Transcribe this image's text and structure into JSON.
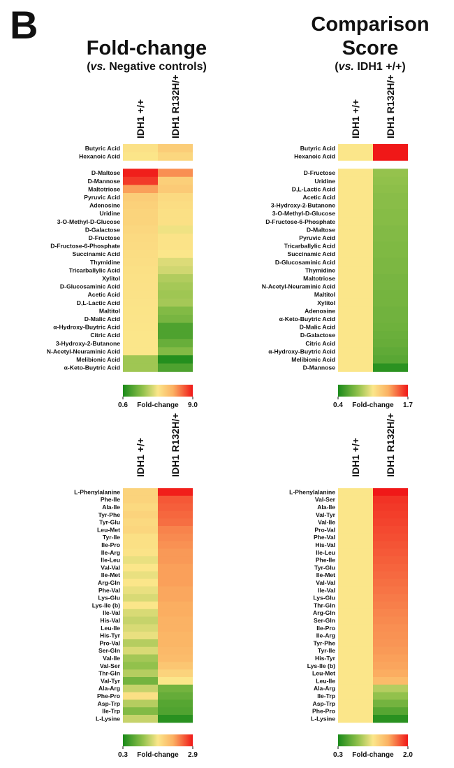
{
  "panel_letter": "B",
  "headers": {
    "left": {
      "title": "Fold-change",
      "subtitle_italic": "vs.",
      "subtitle_rest": " Negative controls)"
    },
    "right": {
      "title_line1": "Comparison",
      "title_line2": "Score",
      "subtitle_italic": "vs.",
      "subtitle_rest": " IDH1 +/+)"
    }
  },
  "colors": {
    "green": "#1a8a1a",
    "mid_green": "#8fc04a",
    "yellow": "#fbe68a",
    "orange": "#fbb062",
    "red": "#f01818"
  },
  "chart_data": [
    {
      "id": "top_left",
      "type": "heatmap",
      "title": "Fold-change (vs. Negative controls)",
      "columns": [
        "IDH1 +/+",
        "IDH1 R132H/+"
      ],
      "groups": [
        {
          "rows": [
            {
              "label": "Butyric Acid",
              "values": [
                1.3,
                2.6
              ]
            },
            {
              "label": "Hexanoic Acid",
              "values": [
                1.05,
                2.0
              ]
            }
          ]
        },
        {
          "rows": [
            {
              "label": "D-Maltose",
              "values": [
                8.8,
                5.5
              ]
            },
            {
              "label": "D-Mannose",
              "values": [
                8.0,
                2.5
              ]
            },
            {
              "label": "Maltotriose",
              "values": [
                5.0,
                2.8
              ]
            },
            {
              "label": "Pyruvic Acid",
              "values": [
                2.6,
                1.8
              ]
            },
            {
              "label": "Adenosine",
              "values": [
                2.4,
                1.6
              ]
            },
            {
              "label": "Uridine",
              "values": [
                2.2,
                1.4
              ]
            },
            {
              "label": "3-O-Methyl-D-Glucose",
              "values": [
                2.2,
                1.4
              ]
            },
            {
              "label": "D-Galactose",
              "values": [
                2.0,
                0.98
              ]
            },
            {
              "label": "D-Fructose",
              "values": [
                1.8,
                1.2
              ]
            },
            {
              "label": "D-Fructose-6-Phosphate",
              "values": [
                1.7,
                1.2
              ]
            },
            {
              "label": "Succinamic Acid",
              "values": [
                1.6,
                1.0
              ]
            },
            {
              "label": "Thymidine",
              "values": [
                1.5,
                0.95
              ]
            },
            {
              "label": "Tricarballylic Acid",
              "values": [
                1.4,
                0.93
              ]
            },
            {
              "label": "Xylitol",
              "values": [
                1.35,
                0.88
              ]
            },
            {
              "label": "D-Glucosaminic Acid",
              "values": [
                1.3,
                0.86
              ]
            },
            {
              "label": "Acetic Acid",
              "values": [
                1.25,
                0.85
              ]
            },
            {
              "label": "D,L-Lactic Acid",
              "values": [
                1.2,
                0.86
              ]
            },
            {
              "label": "Maltitol",
              "values": [
                1.15,
                0.8
              ]
            },
            {
              "label": "D-Malic Acid",
              "values": [
                1.1,
                0.78
              ]
            },
            {
              "label": "α-Hydroxy-Buytric Acid",
              "values": [
                1.05,
                0.7
              ]
            },
            {
              "label": "Citric Acid",
              "values": [
                1.0,
                0.7
              ]
            },
            {
              "label": "3-Hydroxy-2-Butanone",
              "values": [
                1.0,
                0.75
              ]
            },
            {
              "label": "N-Acetyl-Neuraminic Acid",
              "values": [
                1.0,
                0.8
              ]
            },
            {
              "label": "Melibionic Acid",
              "values": [
                0.85,
                0.62
              ]
            },
            {
              "label": "α-Keto-Buytric Acid",
              "values": [
                0.85,
                0.7
              ]
            }
          ]
        }
      ],
      "scale": {
        "min": 0.6,
        "max": 9.0,
        "min_label": "0.6",
        "max_label": "9.0",
        "label": "Fold-change"
      }
    },
    {
      "id": "top_right",
      "type": "heatmap",
      "title": "Comparison Score (vs. IDH1 +/+)",
      "columns": [
        "IDH1 +/+",
        "IDH1 R132H/+"
      ],
      "groups": [
        {
          "rows": [
            {
              "label": "Butyric Acid",
              "values": [
                1.0,
                1.7
              ]
            },
            {
              "label": "Hexanoic Acid",
              "values": [
                1.0,
                1.7
              ]
            }
          ]
        },
        {
          "rows": [
            {
              "label": "D-Fructose",
              "values": [
                1.0,
                0.75
              ]
            },
            {
              "label": "Uridine",
              "values": [
                1.0,
                0.74
              ]
            },
            {
              "label": "D,L-Lactic Acid",
              "values": [
                1.0,
                0.73
              ]
            },
            {
              "label": "Acetic Acid",
              "values": [
                1.0,
                0.72
              ]
            },
            {
              "label": "3-Hydroxy-2-Butanone",
              "values": [
                1.0,
                0.72
              ]
            },
            {
              "label": "3-O-Methyl-D-Glucose",
              "values": [
                1.0,
                0.71
              ]
            },
            {
              "label": "D-Fructose-6-Phosphate",
              "values": [
                1.0,
                0.71
              ]
            },
            {
              "label": "D-Maltose",
              "values": [
                1.0,
                0.7
              ]
            },
            {
              "label": "Pyruvic Acid",
              "values": [
                1.0,
                0.7
              ]
            },
            {
              "label": "Tricarballylic Acid",
              "values": [
                1.0,
                0.69
              ]
            },
            {
              "label": "Succinamic Acid",
              "values": [
                1.0,
                0.69
              ]
            },
            {
              "label": "D-Glucosaminic Acid",
              "values": [
                1.0,
                0.68
              ]
            },
            {
              "label": "Thymidine",
              "values": [
                1.0,
                0.68
              ]
            },
            {
              "label": "Maltotriose",
              "values": [
                1.0,
                0.67
              ]
            },
            {
              "label": "N-Acetyl-Neuraminic Acid",
              "values": [
                1.0,
                0.67
              ]
            },
            {
              "label": "Maltitol",
              "values": [
                1.0,
                0.66
              ]
            },
            {
              "label": "Xylitol",
              "values": [
                1.0,
                0.66
              ]
            },
            {
              "label": "Adenosine",
              "values": [
                1.0,
                0.65
              ]
            },
            {
              "label": "α-Keto-Buytric Acid",
              "values": [
                1.0,
                0.65
              ]
            },
            {
              "label": "D-Malic Acid",
              "values": [
                1.0,
                0.64
              ]
            },
            {
              "label": "D-Galactose",
              "values": [
                1.0,
                0.63
              ]
            },
            {
              "label": "Citric Acid",
              "values": [
                1.0,
                0.62
              ]
            },
            {
              "label": "α-Hydroxy-Buytric Acid",
              "values": [
                1.0,
                0.6
              ]
            },
            {
              "label": "Melibionic Acid",
              "values": [
                1.0,
                0.58
              ]
            },
            {
              "label": "D-Mannose",
              "values": [
                1.0,
                0.45
              ]
            }
          ]
        }
      ],
      "scale": {
        "min": 0.4,
        "max": 1.7,
        "min_label": "0.4",
        "max_label": "1.7",
        "label": "Fold-change"
      }
    },
    {
      "id": "bottom_left",
      "type": "heatmap",
      "title": "Fold-change (vs. Negative controls)",
      "columns": [
        "IDH1 +/+",
        "IDH1 R132H/+"
      ],
      "groups": [
        {
          "rows": [
            {
              "label": "L-Phenylalanine",
              "values": [
                1.3,
                2.85
              ]
            },
            {
              "label": "Phe-Ile",
              "values": [
                1.3,
                2.45
              ]
            },
            {
              "label": "Ala-Ile",
              "values": [
                1.2,
                2.4
              ]
            },
            {
              "label": "Tyr-Phe",
              "values": [
                1.3,
                2.35
              ]
            },
            {
              "label": "Tyr-Glu",
              "values": [
                1.2,
                2.3
              ]
            },
            {
              "label": "Leu-Met",
              "values": [
                1.25,
                2.15
              ]
            },
            {
              "label": "Tyr-Ile",
              "values": [
                1.1,
                2.1
              ]
            },
            {
              "label": "Ile-Pro",
              "values": [
                1.1,
                2.05
              ]
            },
            {
              "label": "Ile-Arg",
              "values": [
                1.05,
                2.0
              ]
            },
            {
              "label": "Ile-Leu",
              "values": [
                0.95,
                2.0
              ]
            },
            {
              "label": "Val-Val",
              "values": [
                1.0,
                1.95
              ]
            },
            {
              "label": "Ile-Met",
              "values": [
                0.95,
                1.95
              ]
            },
            {
              "label": "Arg-Gln",
              "values": [
                1.0,
                1.95
              ]
            },
            {
              "label": "Phe-Val",
              "values": [
                0.95,
                1.9
              ]
            },
            {
              "label": "Lys-Glu",
              "values": [
                0.9,
                1.9
              ]
            },
            {
              "label": "Lys-Ile (b)",
              "values": [
                1.0,
                1.85
              ]
            },
            {
              "label": "Ile-Val",
              "values": [
                0.9,
                1.85
              ]
            },
            {
              "label": "His-Val",
              "values": [
                0.85,
                1.8
              ]
            },
            {
              "label": "Leu-Ile",
              "values": [
                0.9,
                1.8
              ]
            },
            {
              "label": "His-Tyr",
              "values": [
                0.95,
                1.75
              ]
            },
            {
              "label": "Pro-Val",
              "values": [
                0.8,
                1.75
              ]
            },
            {
              "label": "Ser-Gln",
              "values": [
                0.9,
                1.7
              ]
            },
            {
              "label": "Val-Ile",
              "values": [
                0.75,
                1.65
              ]
            },
            {
              "label": "Val-Ser",
              "values": [
                0.7,
                1.5
              ]
            },
            {
              "label": "Thr-Gln",
              "values": [
                0.8,
                1.3
              ]
            },
            {
              "label": "Val-Tyr",
              "values": [
                0.6,
                1.0
              ]
            },
            {
              "label": "Ala-Arg",
              "values": [
                0.85,
                0.6
              ]
            },
            {
              "label": "Phe-Pro",
              "values": [
                1.1,
                0.55
              ]
            },
            {
              "label": "Asp-Trp",
              "values": [
                0.8,
                0.5
              ]
            },
            {
              "label": "Ile-Trp",
              "values": [
                0.65,
                0.48
              ]
            },
            {
              "label": "L-Lysine",
              "values": [
                0.85,
                0.35
              ]
            }
          ]
        }
      ],
      "scale": {
        "min": 0.3,
        "max": 2.9,
        "min_label": "0.3",
        "max_label": "2.9",
        "label": "Fold-change"
      }
    },
    {
      "id": "bottom_right",
      "type": "heatmap",
      "title": "Comparison Score (vs. IDH1 +/+)",
      "columns": [
        "IDH1 +/+",
        "IDH1 R132H/+"
      ],
      "groups": [
        {
          "rows": [
            {
              "label": "L-Phenylalanine",
              "values": [
                1.0,
                2.0
              ]
            },
            {
              "label": "Val-Ser",
              "values": [
                1.0,
                1.9
              ]
            },
            {
              "label": "Ala-Ile",
              "values": [
                1.0,
                1.88
              ]
            },
            {
              "label": "Val-Tyr",
              "values": [
                1.0,
                1.86
              ]
            },
            {
              "label": "Val-Ile",
              "values": [
                1.0,
                1.84
              ]
            },
            {
              "label": "Pro-Val",
              "values": [
                1.0,
                1.82
              ]
            },
            {
              "label": "Phe-Val",
              "values": [
                1.0,
                1.8
              ]
            },
            {
              "label": "His-Val",
              "values": [
                1.0,
                1.78
              ]
            },
            {
              "label": "Ile-Leu",
              "values": [
                1.0,
                1.76
              ]
            },
            {
              "label": "Phe-Ile",
              "values": [
                1.0,
                1.74
              ]
            },
            {
              "label": "Tyr-Glu",
              "values": [
                1.0,
                1.72
              ]
            },
            {
              "label": "Ile-Met",
              "values": [
                1.0,
                1.7
              ]
            },
            {
              "label": "Val-Val",
              "values": [
                1.0,
                1.68
              ]
            },
            {
              "label": "Ile-Val",
              "values": [
                1.0,
                1.66
              ]
            },
            {
              "label": "Lys-Glu",
              "values": [
                1.0,
                1.64
              ]
            },
            {
              "label": "Thr-Gln",
              "values": [
                1.0,
                1.62
              ]
            },
            {
              "label": "Arg-Gln",
              "values": [
                1.0,
                1.6
              ]
            },
            {
              "label": "Ser-Gln",
              "values": [
                1.0,
                1.58
              ]
            },
            {
              "label": "Ile-Pro",
              "values": [
                1.0,
                1.56
              ]
            },
            {
              "label": "Ile-Arg",
              "values": [
                1.0,
                1.55
              ]
            },
            {
              "label": "Tyr-Phe",
              "values": [
                1.0,
                1.54
              ]
            },
            {
              "label": "Tyr-Ile",
              "values": [
                1.0,
                1.52
              ]
            },
            {
              "label": "His-Tyr",
              "values": [
                1.0,
                1.5
              ]
            },
            {
              "label": "Lys-Ile (b)",
              "values": [
                1.0,
                1.48
              ]
            },
            {
              "label": "Leu-Met",
              "values": [
                1.0,
                1.45
              ]
            },
            {
              "label": "Leu-Ile",
              "values": [
                1.0,
                1.35
              ]
            },
            {
              "label": "Ala-Arg",
              "values": [
                1.0,
                0.8
              ]
            },
            {
              "label": "Ile-Trp",
              "values": [
                1.0,
                0.7
              ]
            },
            {
              "label": "Asp-Trp",
              "values": [
                1.0,
                0.6
              ]
            },
            {
              "label": "Phe-Pro",
              "values": [
                1.0,
                0.5
              ]
            },
            {
              "label": "L-Lysine",
              "values": [
                1.0,
                0.35
              ]
            }
          ]
        }
      ],
      "scale": {
        "min": 0.3,
        "max": 2.0,
        "min_label": "0.3",
        "max_label": "2.0",
        "label": "Fold-change"
      }
    }
  ]
}
